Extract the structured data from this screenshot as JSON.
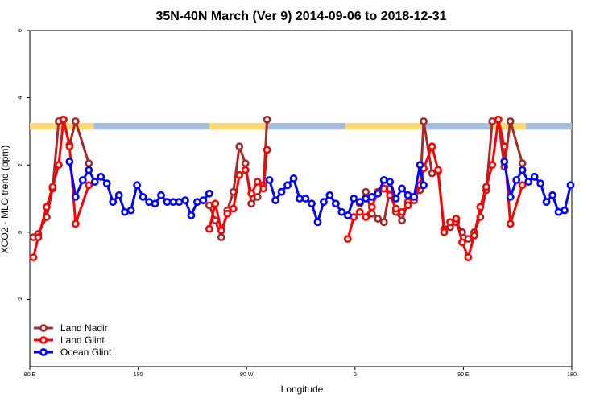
{
  "chart_data": {
    "type": "line",
    "title": "35N-40N March (Ver 9)   2014-09-06 to 2018-12-31",
    "xlabel": "Longitude",
    "ylabel": "XCO2 - MLO trend (ppm)",
    "xlim": [
      0,
      450
    ],
    "ylim": [
      -4,
      6
    ],
    "x_ticks": [
      {
        "value": 0,
        "label": "90 E"
      },
      {
        "value": 90,
        "label": "180"
      },
      {
        "value": 180,
        "label": "90 W"
      },
      {
        "value": 270,
        "label": "0"
      },
      {
        "value": 360,
        "label": "90 E"
      },
      {
        "value": 450,
        "label": "180"
      }
    ],
    "y_ticks": [
      {
        "value": -2,
        "label": "-2"
      },
      {
        "value": 0,
        "label": "0"
      },
      {
        "value": 2,
        "label": "2"
      },
      {
        "value": 4,
        "label": "4"
      },
      {
        "value": 6,
        "label": "6"
      }
    ],
    "band": {
      "y_low": 3.05,
      "y_high": 3.25,
      "land_color": "#FDD97A",
      "ocean_color": "#A5BEDC",
      "land_ranges": [
        [
          0,
          53
        ],
        [
          149,
          197
        ],
        [
          262,
          326
        ],
        [
          382,
          412
        ]
      ]
    },
    "legend_position": "bottom-left",
    "series": [
      {
        "name": "Land Nadir",
        "color": "#A52A2A",
        "points": [
          [
            3,
            -0.15
          ],
          [
            7,
            -0.05
          ],
          [
            14,
            0.45
          ],
          [
            19,
            1.3
          ],
          [
            24,
            3.3
          ],
          [
            28,
            3.35
          ],
          [
            33,
            2.6
          ],
          [
            38,
            3.3
          ],
          [
            49,
            2.05
          ],
          [
            149,
            0.8
          ],
          [
            154,
            0.35
          ],
          [
            159,
            -0.15
          ],
          [
            164,
            0.65
          ],
          [
            169,
            1.2
          ],
          [
            174,
            2.55
          ],
          [
            179,
            2.05
          ],
          [
            184,
            0.85
          ],
          [
            189,
            1.05
          ],
          [
            194,
            1.4
          ],
          [
            197,
            3.35
          ],
          [
            274,
            0.85
          ],
          [
            279,
            1.2
          ],
          [
            284,
            0.55
          ],
          [
            289,
            0.4
          ],
          [
            294,
            0.3
          ],
          [
            299,
            1.3
          ],
          [
            304,
            0.6
          ],
          [
            309,
            0.35
          ],
          [
            314,
            0.9
          ],
          [
            319,
            1.05
          ],
          [
            324,
            1.25
          ],
          [
            327,
            3.3
          ],
          [
            334,
            1.75
          ],
          [
            339,
            1.8
          ],
          [
            344,
            0.1
          ],
          [
            349,
            0.15
          ],
          [
            354,
            0.3
          ],
          [
            359,
            0.0
          ],
          [
            364,
            -0.2
          ],
          [
            369,
            0.0
          ],
          [
            374,
            0.45
          ],
          [
            379,
            1.25
          ],
          [
            384,
            3.3
          ],
          [
            389,
            3.35
          ],
          [
            394,
            1.95
          ],
          [
            399,
            3.3
          ],
          [
            409,
            2.05
          ]
        ]
      },
      {
        "name": "Land Glint",
        "color": "#FF0000",
        "points": [
          [
            3,
            -0.75
          ],
          [
            7,
            -0.15
          ],
          [
            14,
            0.75
          ],
          [
            19,
            1.35
          ],
          [
            24,
            2.0
          ],
          [
            28,
            3.35
          ],
          [
            33,
            2.55
          ],
          [
            38,
            0.25
          ],
          [
            49,
            1.4
          ],
          [
            149,
            0.1
          ],
          [
            154,
            0.85
          ],
          [
            159,
            0.05
          ],
          [
            164,
            0.55
          ],
          [
            169,
            0.7
          ],
          [
            174,
            1.7
          ],
          [
            179,
            1.85
          ],
          [
            184,
            1.15
          ],
          [
            189,
            1.5
          ],
          [
            194,
            1.3
          ],
          [
            197,
            2.45
          ],
          [
            264,
            -0.2
          ],
          [
            269,
            0.45
          ],
          [
            274,
            0.6
          ],
          [
            279,
            0.45
          ],
          [
            284,
            0.75
          ],
          [
            289,
            1.2
          ],
          [
            294,
            1.3
          ],
          [
            299,
            1.1
          ],
          [
            304,
            0.7
          ],
          [
            309,
            0.6
          ],
          [
            314,
            0.8
          ],
          [
            319,
            0.95
          ],
          [
            324,
            1.4
          ],
          [
            327,
            1.9
          ],
          [
            334,
            2.55
          ],
          [
            339,
            1.85
          ],
          [
            344,
            0.0
          ],
          [
            349,
            0.3
          ],
          [
            354,
            0.4
          ],
          [
            359,
            -0.3
          ],
          [
            364,
            -0.75
          ],
          [
            369,
            -0.1
          ],
          [
            374,
            0.75
          ],
          [
            379,
            1.35
          ],
          [
            384,
            2.0
          ],
          [
            389,
            3.35
          ],
          [
            394,
            2.55
          ],
          [
            399,
            0.25
          ],
          [
            409,
            1.4
          ]
        ]
      },
      {
        "name": "Ocean Glint",
        "color": "#0000FF",
        "points": [
          [
            33,
            2.1
          ],
          [
            38,
            1.05
          ],
          [
            44,
            1.55
          ],
          [
            49,
            1.85
          ],
          [
            54,
            1.5
          ],
          [
            59,
            1.65
          ],
          [
            64,
            1.45
          ],
          [
            69,
            0.9
          ],
          [
            74,
            1.1
          ],
          [
            79,
            0.6
          ],
          [
            84,
            0.65
          ],
          [
            89,
            1.4
          ],
          [
            94,
            1.05
          ],
          [
            99,
            0.9
          ],
          [
            104,
            0.85
          ],
          [
            109,
            1.1
          ],
          [
            114,
            0.9
          ],
          [
            119,
            0.9
          ],
          [
            124,
            0.9
          ],
          [
            129,
            0.95
          ],
          [
            134,
            0.5
          ],
          [
            139,
            0.9
          ],
          [
            144,
            0.95
          ],
          [
            149,
            1.15
          ],
          [
            199,
            1.55
          ],
          [
            204,
            0.95
          ],
          [
            209,
            1.2
          ],
          [
            214,
            1.4
          ],
          [
            219,
            1.6
          ],
          [
            224,
            1.0
          ],
          [
            229,
            1.0
          ],
          [
            234,
            0.85
          ],
          [
            239,
            0.3
          ],
          [
            244,
            0.9
          ],
          [
            249,
            1.1
          ],
          [
            254,
            0.85
          ],
          [
            259,
            0.6
          ],
          [
            264,
            0.5
          ],
          [
            269,
            1.0
          ],
          [
            274,
            0.9
          ],
          [
            279,
            1.0
          ],
          [
            284,
            1.05
          ],
          [
            289,
            1.15
          ],
          [
            294,
            1.55
          ],
          [
            299,
            1.5
          ],
          [
            304,
            1.0
          ],
          [
            309,
            1.3
          ],
          [
            314,
            1.1
          ],
          [
            319,
            1.05
          ],
          [
            324,
            2.0
          ],
          [
            327,
            1.4
          ],
          [
            394,
            2.1
          ],
          [
            399,
            1.05
          ],
          [
            404,
            1.55
          ],
          [
            409,
            1.85
          ],
          [
            414,
            1.5
          ],
          [
            419,
            1.65
          ],
          [
            424,
            1.45
          ],
          [
            429,
            0.9
          ],
          [
            434,
            1.1
          ],
          [
            439,
            0.6
          ],
          [
            444,
            0.65
          ],
          [
            449,
            1.4
          ]
        ]
      }
    ]
  }
}
